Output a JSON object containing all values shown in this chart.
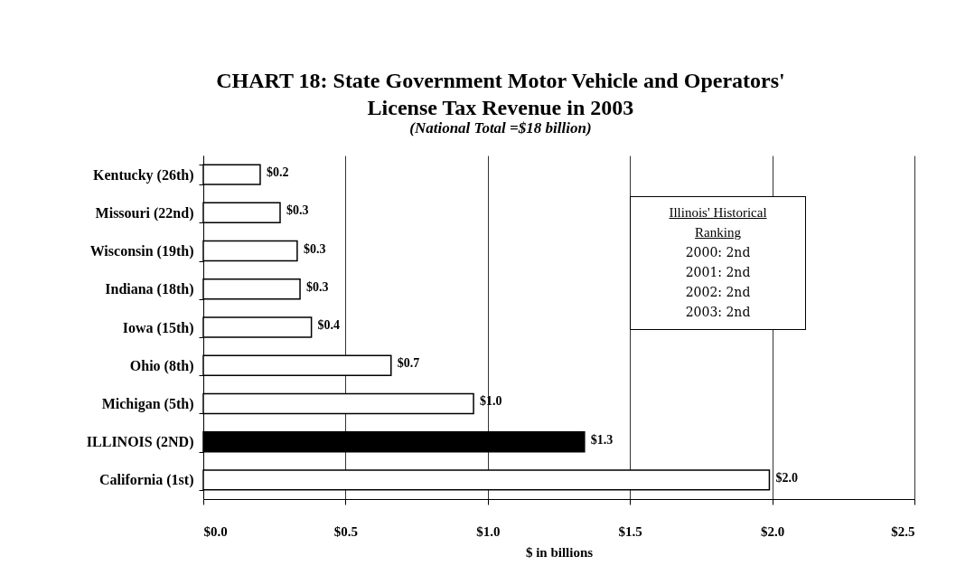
{
  "chart_data": {
    "type": "bar",
    "orientation": "horizontal",
    "title": "CHART 18: State Government Motor Vehicle and Operators' License Tax Revenue in 2003",
    "subtitle": "(National Total =$18 billion)",
    "xlabel": "$ in billions",
    "categories": [
      "Kentucky (26th)",
      "Missouri (22nd)",
      "Wisconsin (19th)",
      "Indiana (18th)",
      "Iowa (15th)",
      "Ohio (8th)",
      "Michigan (5th)",
      "ILLINOIS (2ND)",
      "California (1st)"
    ],
    "values": [
      0.2,
      0.27,
      0.33,
      0.34,
      0.38,
      0.66,
      0.95,
      1.34,
      1.99
    ],
    "value_labels": [
      "$0.2",
      "$0.3",
      "$0.3",
      "$0.3",
      "$0.4",
      "$0.7",
      "$1.0",
      "$1.3",
      "$2.0"
    ],
    "colors": [
      "#ffffff",
      "#ffffff",
      "#ffffff",
      "#ffffff",
      "#ffffff",
      "#ffffff",
      "#ffffff",
      "#000000",
      "#ffffff"
    ],
    "xlim": [
      0,
      2.5
    ],
    "xticks": [
      {
        "value": 0,
        "label": "$0.0"
      },
      {
        "value": 0.5,
        "label": "$0.5"
      },
      {
        "value": 1,
        "label": "$1.0"
      },
      {
        "value": 1.5,
        "label": "$1.5"
      },
      {
        "value": 2,
        "label": "$2.0"
      },
      {
        "value": 2.5,
        "label": "$2.5"
      }
    ],
    "grid": "x",
    "annotations": [
      "Illinois' Historical Ranking",
      "2000: 2nd",
      "2001: 2nd",
      "2002: 2nd",
      "2003: 2nd"
    ]
  }
}
